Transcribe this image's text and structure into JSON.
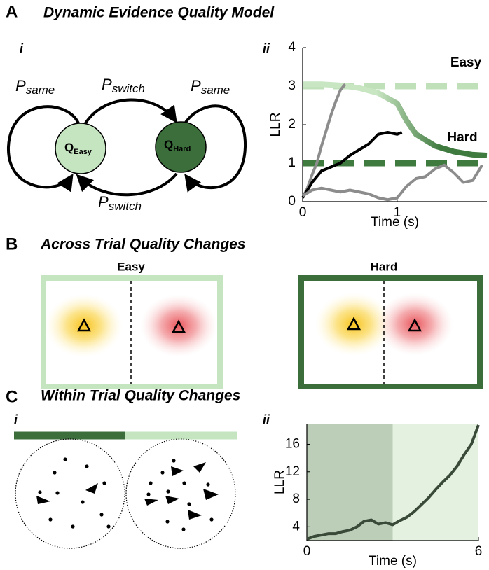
{
  "panels": {
    "A": {
      "label": "A",
      "title": "Dynamic Evidence Quality Model",
      "sub_i": "i",
      "sub_ii": "ii"
    },
    "B": {
      "label": "B",
      "title": "Across Trial Quality Changes",
      "easy": "Easy",
      "hard": "Hard"
    },
    "C": {
      "label": "C",
      "title": "Within Trial Quality Changes",
      "sub_i": "i",
      "sub_ii": "ii"
    }
  },
  "diagram": {
    "nodes": [
      {
        "label": "Q",
        "subscript": "Easy"
      },
      {
        "label": "Q",
        "subscript": "Hard"
      }
    ],
    "edges": [
      {
        "label": "P",
        "subscript": "same"
      },
      {
        "label": "P",
        "subscript": "switch"
      },
      {
        "label": "P",
        "subscript": "same"
      },
      {
        "label": "P",
        "subscript": "switch"
      }
    ]
  },
  "chart_data": [
    {
      "type": "line",
      "xlabel": "Time (s)",
      "ylabel": "LLR",
      "xlim": [
        0,
        1.95
      ],
      "ylim": [
        0,
        4
      ],
      "xticks": [
        0,
        1
      ],
      "yticks": [
        0,
        1,
        2,
        3,
        4
      ],
      "gradient": [
        "#c9e6c3",
        "#3f7a3f"
      ],
      "series": [
        {
          "name": "Easy",
          "color": "#bfe0b8",
          "dashed": true,
          "x": [
            0,
            1.95
          ],
          "values": [
            3,
            3
          ]
        },
        {
          "name": "Hard",
          "color": "#3f7a3f",
          "dashed": true,
          "x": [
            0,
            1.95
          ],
          "values": [
            1,
            1
          ]
        },
        {
          "color": "gradient",
          "x": [
            0,
            0.2,
            0.4,
            0.6,
            0.8,
            1.0,
            1.1,
            1.2,
            1.4,
            1.6,
            1.8,
            1.95
          ],
          "values": [
            3.05,
            3.05,
            3.02,
            2.95,
            2.82,
            2.55,
            2.1,
            1.75,
            1.45,
            1.3,
            1.22,
            1.2
          ]
        },
        {
          "color": "#8c8c8c",
          "x": [
            0,
            0.05,
            0.1,
            0.15,
            0.2,
            0.25,
            0.3,
            0.35,
            0.4,
            0.45
          ],
          "values": [
            0.1,
            0.35,
            0.7,
            1.0,
            1.45,
            1.85,
            2.25,
            2.6,
            2.9,
            3.05
          ]
        },
        {
          "color": "#000000",
          "x": [
            0,
            0.1,
            0.2,
            0.3,
            0.4,
            0.5,
            0.6,
            0.7,
            0.8,
            0.9,
            1.0,
            1.05
          ],
          "values": [
            0.1,
            0.5,
            0.8,
            0.9,
            1.0,
            1.2,
            1.35,
            1.5,
            1.75,
            1.8,
            1.75,
            1.8
          ]
        },
        {
          "color": "#8c8c8c",
          "x": [
            0,
            0.1,
            0.2,
            0.3,
            0.4,
            0.5,
            0.6,
            0.7,
            0.8,
            0.9,
            1.0,
            1.1,
            1.2,
            1.3,
            1.4,
            1.5,
            1.6,
            1.7,
            1.8,
            1.9
          ],
          "values": [
            0.15,
            0.3,
            0.35,
            0.3,
            0.25,
            0.3,
            0.25,
            0.2,
            0.1,
            0.05,
            0.1,
            0.4,
            0.6,
            0.65,
            0.85,
            0.95,
            0.75,
            0.5,
            0.55,
            0.95
          ]
        }
      ]
    },
    {
      "type": "line",
      "xlabel": "Time (s)",
      "ylabel": "LLR",
      "xlim": [
        0,
        6
      ],
      "ylim": [
        2,
        19
      ],
      "xticks": [
        0,
        6
      ],
      "yticks": [
        4,
        8,
        12,
        16
      ],
      "regions": [
        {
          "x": [
            0,
            3
          ],
          "color": "#bccdb8"
        },
        {
          "x": [
            3,
            6
          ],
          "color": "#e4f1e1"
        }
      ],
      "series": [
        {
          "color": "#394a39",
          "x": [
            0,
            0.25,
            0.5,
            0.75,
            1,
            1.25,
            1.5,
            1.75,
            2,
            2.25,
            2.5,
            2.75,
            3,
            3.25,
            3.5,
            3.75,
            4,
            4.25,
            4.5,
            4.75,
            5,
            5.25,
            5.5,
            5.75,
            6
          ],
          "values": [
            2.2,
            2.6,
            2.8,
            3.0,
            3.0,
            3.3,
            3.5,
            4.0,
            4.8,
            5.0,
            4.4,
            4.6,
            4.3,
            4.9,
            5.4,
            6.2,
            7.2,
            8.2,
            9.4,
            10.5,
            11.5,
            12.8,
            14.5,
            16.0,
            18.8
          ]
        }
      ]
    }
  ]
}
